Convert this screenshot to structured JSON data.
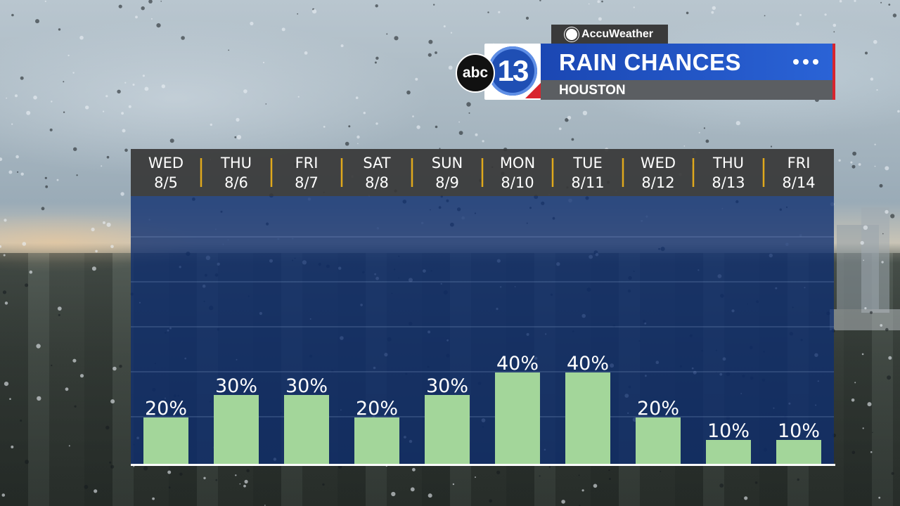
{
  "branding": {
    "provider": "AccuWeather",
    "station_abc": "abc",
    "station_num": "13",
    "title": "RAIN CHANCES",
    "location": "HOUSTON",
    "accent_blue": "#2a63d6",
    "accent_red": "#d8242d"
  },
  "chart_data": {
    "type": "bar",
    "categories": [
      {
        "day": "WED",
        "date": "8/5"
      },
      {
        "day": "THU",
        "date": "8/6"
      },
      {
        "day": "FRI",
        "date": "8/7"
      },
      {
        "day": "SAT",
        "date": "8/8"
      },
      {
        "day": "SUN",
        "date": "8/9"
      },
      {
        "day": "MON",
        "date": "8/10"
      },
      {
        "day": "TUE",
        "date": "8/11"
      },
      {
        "day": "WED",
        "date": "8/12"
      },
      {
        "day": "THU",
        "date": "8/13"
      },
      {
        "day": "FRI",
        "date": "8/14"
      }
    ],
    "values": [
      20,
      30,
      30,
      20,
      30,
      40,
      40,
      20,
      10,
      10
    ],
    "value_labels": [
      "20%",
      "30%",
      "30%",
      "20%",
      "30%",
      "40%",
      "40%",
      "20%",
      "10%",
      "10%"
    ],
    "unit": "%",
    "ylim": [
      0,
      100
    ],
    "grid": true,
    "bar_color": "#a3d69a",
    "separator_color": "#e0a91c"
  }
}
